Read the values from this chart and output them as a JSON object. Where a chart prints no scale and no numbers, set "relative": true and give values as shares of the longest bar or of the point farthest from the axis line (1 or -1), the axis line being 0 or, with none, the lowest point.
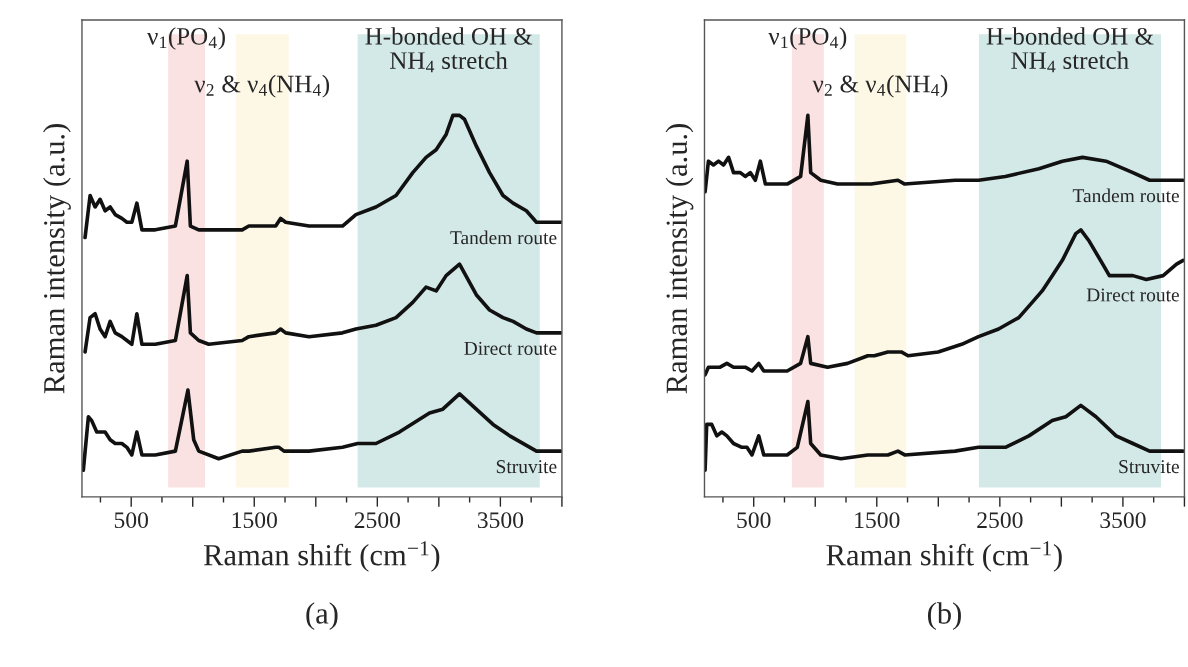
{
  "chart_data": [
    {
      "type": "line",
      "relative": true,
      "xlabel": "Raman shift (cm$^{−1}$)",
      "ylabel": "Raman intensity (a.u.)",
      "annotations": [
        "(a)"
      ],
      "xlim": [
        100,
        4000
      ],
      "xticks": [
        500,
        {
          "value": 1000,
          "label": null
        },
        1500,
        {
          "value": 2000,
          "label": null
        },
        2500,
        {
          "value": 3000,
          "label": null
        },
        3500,
        {
          "value": 4000,
          "label": null
        }
      ],
      "bands": [
        {
          "axis": "x",
          "from": 800,
          "to": 1100,
          "label": "ν$_{1}$(PO$_{4}$)",
          "color": "#fbe2e2"
        },
        {
          "axis": "x",
          "from": 1350,
          "to": 1780,
          "label": "ν$_{2}$ & ν$_{4}$(NH$_{4}$)",
          "color": "#fdf8e6"
        },
        {
          "axis": "x",
          "from": 2340,
          "to": 3820,
          "label": "H-bonded OH &\nNH$_{4}$ stretch",
          "color": "#d3e9e7"
        }
      ],
      "series": [
        {
          "name": "Tandem route",
          "color": "#111111",
          "x": [
            125,
            166,
            207,
            247,
            288,
            329,
            370,
            424,
            465,
            505,
            546,
            587,
            696,
            859,
            955,
            981,
            1049,
            1130,
            1402,
            1456,
            1511,
            1674,
            1714,
            1755,
            1945,
            2217,
            2326,
            2489,
            2652,
            2788,
            2896,
            2978,
            3059,
            3114,
            3168,
            3208,
            3304,
            3412,
            3521,
            3603,
            3711,
            3793,
            3901,
            3990
          ],
          "values": [
            0.68,
            0.79,
            0.76,
            0.78,
            0.75,
            0.76,
            0.74,
            0.73,
            0.72,
            0.72,
            0.77,
            0.7,
            0.7,
            0.71,
            0.88,
            0.71,
            0.7,
            0.7,
            0.7,
            0.71,
            0.71,
            0.71,
            0.73,
            0.72,
            0.71,
            0.71,
            0.74,
            0.76,
            0.79,
            0.85,
            0.89,
            0.91,
            0.95,
            1.0,
            1.0,
            0.99,
            0.92,
            0.85,
            0.79,
            0.77,
            0.75,
            0.72,
            0.72,
            0.72
          ]
        },
        {
          "name": "Direct route",
          "color": "#111111",
          "x": [
            125,
            166,
            207,
            247,
            288,
            329,
            370,
            424,
            465,
            505,
            546,
            587,
            696,
            859,
            955,
            981,
            1049,
            1130,
            1402,
            1456,
            1674,
            1714,
            1755,
            1945,
            2217,
            2326,
            2489,
            2652,
            2788,
            2896,
            2978,
            3059,
            3168,
            3304,
            3412,
            3521,
            3603,
            3711,
            3793,
            3990
          ],
          "values": [
            0.38,
            0.47,
            0.48,
            0.44,
            0.42,
            0.46,
            0.43,
            0.42,
            0.41,
            0.4,
            0.48,
            0.4,
            0.4,
            0.41,
            0.58,
            0.43,
            0.41,
            0.4,
            0.41,
            0.42,
            0.43,
            0.44,
            0.43,
            0.42,
            0.43,
            0.44,
            0.45,
            0.47,
            0.51,
            0.55,
            0.54,
            0.58,
            0.61,
            0.53,
            0.49,
            0.47,
            0.46,
            0.44,
            0.43,
            0.43
          ]
        },
        {
          "name": "Struvite",
          "color": "#111111",
          "x": [
            111,
            152,
            179,
            220,
            261,
            288,
            329,
            370,
            424,
            465,
            505,
            546,
            587,
            696,
            859,
            961,
            1008,
            1049,
            1211,
            1402,
            1456,
            1674,
            1701,
            1742,
            1945,
            2217,
            2340,
            2489,
            2679,
            2924,
            3032,
            3168,
            3304,
            3440,
            3576,
            3793,
            3990
          ],
          "values": [
            0.07,
            0.21,
            0.2,
            0.17,
            0.17,
            0.17,
            0.15,
            0.14,
            0.14,
            0.13,
            0.11,
            0.17,
            0.11,
            0.11,
            0.12,
            0.28,
            0.15,
            0.12,
            0.1,
            0.12,
            0.12,
            0.13,
            0.13,
            0.12,
            0.12,
            0.13,
            0.14,
            0.14,
            0.17,
            0.22,
            0.23,
            0.27,
            0.23,
            0.19,
            0.16,
            0.12,
            0.12
          ]
        }
      ]
    },
    {
      "type": "line",
      "relative": true,
      "xlabel": "Raman shift (cm$^{−1}$)",
      "ylabel": "Raman intensity (a.u.)",
      "annotations": [
        "(b)"
      ],
      "xlim": [
        100,
        4000
      ],
      "xticks": [
        500,
        {
          "value": 1000,
          "label": null
        },
        1500,
        {
          "value": 2000,
          "label": null
        },
        2500,
        {
          "value": 3000,
          "label": null
        },
        3500,
        {
          "value": 4000,
          "label": null
        }
      ],
      "bands": [
        {
          "axis": "x",
          "from": 810,
          "to": 1070,
          "label": "ν$_{1}$(PO$_{4}$)",
          "color": "#fbe2e2"
        },
        {
          "axis": "x",
          "from": 1320,
          "to": 1740,
          "label": "ν$_{2}$ & ν$_{4}$(NH$_{4}$)",
          "color": "#fdf8e6"
        },
        {
          "axis": "x",
          "from": 2330,
          "to": 3810,
          "label": "H-bonded OH &\nNH$_{4}$ stretch",
          "color": "#d3e9e7"
        }
      ],
      "series": [
        {
          "name": "Tandem route",
          "color": "#111111",
          "x": [
            105,
            132,
            173,
            214,
            255,
            296,
            336,
            391,
            431,
            472,
            513,
            554,
            595,
            772,
            881,
            940,
            963,
            1045,
            1181,
            1454,
            1672,
            1727,
            2136,
            2327,
            2545,
            2818,
            3008,
            3172,
            3363,
            3581,
            3717,
            3990
          ],
          "values": [
            0.8,
            0.88,
            0.87,
            0.88,
            0.87,
            0.89,
            0.85,
            0.85,
            0.84,
            0.85,
            0.83,
            0.88,
            0.82,
            0.82,
            0.84,
            1.0,
            0.85,
            0.83,
            0.82,
            0.82,
            0.83,
            0.82,
            0.83,
            0.83,
            0.84,
            0.86,
            0.88,
            0.89,
            0.88,
            0.85,
            0.83,
            0.83
          ]
        },
        {
          "name": "Direct route",
          "color": "#111111",
          "x": [
            105,
            132,
            173,
            227,
            282,
            336,
            391,
            431,
            486,
            541,
            582,
            772,
            881,
            940,
            963,
            1100,
            1263,
            1427,
            1481,
            1590,
            1645,
            1699,
            1754,
            1999,
            2190,
            2327,
            2490,
            2654,
            2763,
            2844,
            2926,
            3008,
            3117,
            3158,
            3227,
            3336,
            3390,
            3499,
            3581,
            3690,
            3827,
            3936,
            3990
          ],
          "values": [
            0.32,
            0.34,
            0.34,
            0.34,
            0.35,
            0.34,
            0.34,
            0.34,
            0.33,
            0.35,
            0.33,
            0.33,
            0.35,
            0.42,
            0.35,
            0.34,
            0.35,
            0.37,
            0.37,
            0.38,
            0.38,
            0.38,
            0.37,
            0.38,
            0.4,
            0.42,
            0.44,
            0.47,
            0.51,
            0.54,
            0.58,
            0.62,
            0.69,
            0.7,
            0.67,
            0.61,
            0.58,
            0.58,
            0.58,
            0.57,
            0.58,
            0.61,
            0.62
          ]
        },
        {
          "name": "Struvite",
          "color": "#111111",
          "x": [
            105,
            118,
            159,
            200,
            241,
            282,
            336,
            404,
            445,
            486,
            541,
            582,
            772,
            854,
            940,
            963,
            1045,
            1209,
            1427,
            1590,
            1672,
            1727,
            2136,
            2327,
            2545,
            2736,
            2926,
            3036,
            3158,
            3281,
            3445,
            3581,
            3717,
            3990
          ],
          "values": [
            0.07,
            0.19,
            0.19,
            0.16,
            0.17,
            0.16,
            0.14,
            0.13,
            0.13,
            0.11,
            0.16,
            0.11,
            0.11,
            0.13,
            0.25,
            0.14,
            0.11,
            0.1,
            0.11,
            0.11,
            0.12,
            0.11,
            0.12,
            0.13,
            0.13,
            0.16,
            0.2,
            0.21,
            0.24,
            0.21,
            0.16,
            0.14,
            0.12,
            0.12
          ]
        }
      ]
    }
  ]
}
